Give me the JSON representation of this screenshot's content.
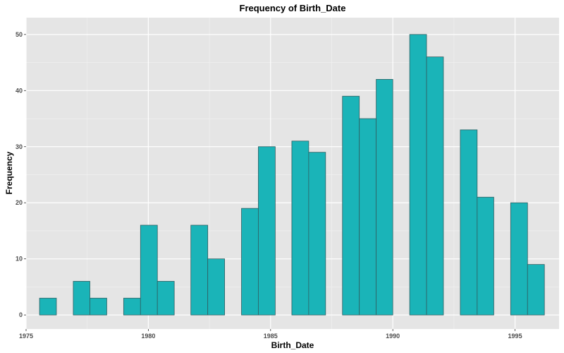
{
  "chart_data": {
    "type": "bar",
    "title": "Frequency of Birth_Date",
    "xlabel": "Birth_Date",
    "ylabel": "Frequency",
    "xlim": [
      1975.0,
      1996.8
    ],
    "ylim": [
      -2.5,
      53
    ],
    "xticks": [
      1975,
      1980,
      1985,
      1990,
      1995
    ],
    "yticks": [
      0,
      10,
      20,
      30,
      40,
      50
    ],
    "grid": true,
    "legend": "none",
    "bar_color": "#1AB4B8",
    "panel_color": "#E5E5E5",
    "bins": [
      {
        "x0": 1975.55,
        "x1": 1976.24,
        "count": 3
      },
      {
        "x0": 1976.24,
        "x1": 1976.93,
        "count": 0
      },
      {
        "x0": 1976.93,
        "x1": 1977.61,
        "count": 6
      },
      {
        "x0": 1977.61,
        "x1": 1978.3,
        "count": 3
      },
      {
        "x0": 1978.3,
        "x1": 1978.99,
        "count": 0
      },
      {
        "x0": 1978.99,
        "x1": 1979.68,
        "count": 3
      },
      {
        "x0": 1979.68,
        "x1": 1980.37,
        "count": 16
      },
      {
        "x0": 1980.37,
        "x1": 1981.06,
        "count": 6
      },
      {
        "x0": 1981.06,
        "x1": 1981.74,
        "count": 0
      },
      {
        "x0": 1981.74,
        "x1": 1982.43,
        "count": 16
      },
      {
        "x0": 1982.43,
        "x1": 1983.12,
        "count": 10
      },
      {
        "x0": 1983.12,
        "x1": 1983.81,
        "count": 0
      },
      {
        "x0": 1983.81,
        "x1": 1984.5,
        "count": 19
      },
      {
        "x0": 1984.5,
        "x1": 1985.19,
        "count": 30
      },
      {
        "x0": 1985.19,
        "x1": 1985.87,
        "count": 0
      },
      {
        "x0": 1985.87,
        "x1": 1986.56,
        "count": 31
      },
      {
        "x0": 1986.56,
        "x1": 1987.25,
        "count": 29
      },
      {
        "x0": 1987.25,
        "x1": 1987.94,
        "count": 0
      },
      {
        "x0": 1987.94,
        "x1": 1988.63,
        "count": 39
      },
      {
        "x0": 1988.63,
        "x1": 1989.32,
        "count": 35
      },
      {
        "x0": 1989.32,
        "x1": 1990.0,
        "count": 42
      },
      {
        "x0": 1990.0,
        "x1": 1990.69,
        "count": 0
      },
      {
        "x0": 1990.69,
        "x1": 1991.38,
        "count": 50
      },
      {
        "x0": 1991.38,
        "x1": 1992.07,
        "count": 46
      },
      {
        "x0": 1992.07,
        "x1": 1992.76,
        "count": 0
      },
      {
        "x0": 1992.76,
        "x1": 1993.45,
        "count": 33
      },
      {
        "x0": 1993.45,
        "x1": 1994.13,
        "count": 21
      },
      {
        "x0": 1994.13,
        "x1": 1994.82,
        "count": 0
      },
      {
        "x0": 1994.82,
        "x1": 1995.51,
        "count": 20
      },
      {
        "x0": 1995.51,
        "x1": 1996.2,
        "count": 9
      }
    ]
  }
}
